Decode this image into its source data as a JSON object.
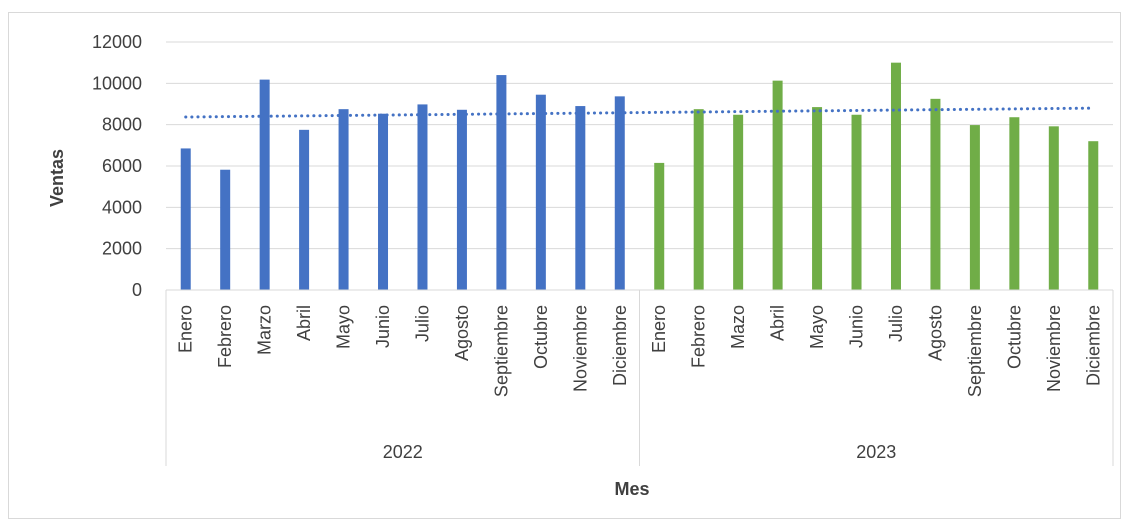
{
  "chart_data": {
    "type": "bar",
    "title": "",
    "xlabel": "Mes",
    "ylabel": "Ventas",
    "ylim": [
      0,
      12000
    ],
    "yticks": [
      0,
      2000,
      4000,
      6000,
      8000,
      10000,
      12000
    ],
    "grid": true,
    "legend": "none",
    "trendline": {
      "type": "linear",
      "style": "dotted",
      "color": "#4472C4",
      "start": 8370,
      "end": 8800
    },
    "groups": [
      {
        "label": "2022",
        "color": "#4472C4",
        "categories": [
          "Enero",
          "Febrero",
          "Marzo",
          "Abril",
          "Mayo",
          "Junio",
          "Julio",
          "Agosto",
          "Septiembre",
          "Octubre",
          "Noviembre",
          "Diciembre"
        ],
        "values": [
          6850,
          5820,
          10180,
          7750,
          8750,
          8530,
          8980,
          8720,
          10400,
          9450,
          8900,
          9370
        ]
      },
      {
        "label": "2023",
        "color": "#70AD47",
        "categories": [
          "Enero",
          "Febrero",
          "Mazo",
          "Abril",
          "Mayo",
          "Junio",
          "Julio",
          "Agosto",
          "Septiembre",
          "Octubre",
          "Noviembre",
          "Diciembre"
        ],
        "values": [
          6150,
          8750,
          8480,
          10130,
          8850,
          8480,
          11000,
          9250,
          7980,
          8360,
          7920,
          7200
        ]
      }
    ]
  }
}
